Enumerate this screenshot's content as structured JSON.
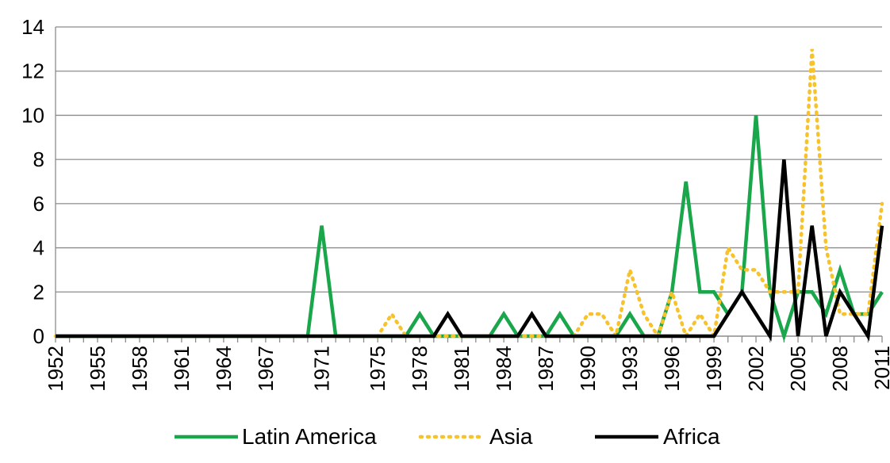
{
  "chart_data": {
    "type": "line",
    "title": "",
    "xlabel": "",
    "ylabel": "",
    "ylim": [
      0,
      14
    ],
    "yticks": [
      0,
      2,
      4,
      6,
      8,
      10,
      12,
      14
    ],
    "x": [
      1952,
      1953,
      1954,
      1955,
      1956,
      1957,
      1958,
      1959,
      1960,
      1961,
      1962,
      1963,
      1964,
      1965,
      1966,
      1967,
      1968,
      1969,
      1970,
      1971,
      1972,
      1973,
      1974,
      1975,
      1976,
      1977,
      1978,
      1979,
      1980,
      1981,
      1982,
      1983,
      1984,
      1985,
      1986,
      1987,
      1988,
      1989,
      1990,
      1991,
      1992,
      1993,
      1994,
      1995,
      1996,
      1997,
      1998,
      1999,
      2000,
      2001,
      2002,
      2003,
      2004,
      2005,
      2006,
      2007,
      2008,
      2009,
      2010,
      2011
    ],
    "x_tick_labels": [
      "1952",
      "1955",
      "1958",
      "1961",
      "1964",
      "1967",
      "1971",
      "1975",
      "1978",
      "1981",
      "1984",
      "1987",
      "1990",
      "1993",
      "1996",
      "1999",
      "2002",
      "2005",
      "2008",
      "2011"
    ],
    "grid": "horizontal",
    "legend_position": "bottom",
    "series": [
      {
        "name": "Latin America",
        "color": "#1aa64b",
        "style": "solid",
        "values": [
          0,
          0,
          0,
          0,
          0,
          0,
          0,
          0,
          0,
          0,
          0,
          0,
          0,
          0,
          0,
          0,
          0,
          0,
          0,
          5,
          0,
          0,
          0,
          0,
          0,
          0,
          1,
          0,
          0,
          0,
          0,
          0,
          1,
          0,
          0,
          0,
          1,
          0,
          0,
          0,
          0,
          1,
          0,
          0,
          2,
          7,
          2,
          2,
          1,
          2,
          10,
          2,
          0,
          2,
          2,
          1,
          3,
          1,
          1,
          2
        ]
      },
      {
        "name": "Asia",
        "color": "#f7c22a",
        "style": "dotted",
        "values": [
          0,
          0,
          0,
          0,
          0,
          0,
          0,
          0,
          0,
          0,
          0,
          0,
          0,
          0,
          0,
          0,
          0,
          0,
          0,
          0,
          0,
          0,
          0,
          0,
          1,
          0,
          0,
          0,
          0,
          0,
          0,
          0,
          0,
          0,
          0,
          0,
          0,
          0,
          1,
          1,
          0,
          3,
          1,
          0,
          2,
          0,
          1,
          0,
          4,
          3,
          3,
          2,
          2,
          2,
          13,
          4,
          1,
          1,
          1,
          6
        ]
      },
      {
        "name": "Africa",
        "color": "#000000",
        "style": "solid",
        "values": [
          0,
          0,
          0,
          0,
          0,
          0,
          0,
          0,
          0,
          0,
          0,
          0,
          0,
          0,
          0,
          0,
          0,
          0,
          0,
          0,
          0,
          0,
          0,
          0,
          0,
          0,
          0,
          0,
          1,
          0,
          0,
          0,
          0,
          0,
          1,
          0,
          0,
          0,
          0,
          0,
          0,
          0,
          0,
          0,
          0,
          0,
          0,
          0,
          1,
          2,
          1,
          0,
          8,
          0,
          5,
          0,
          2,
          1,
          0,
          5
        ]
      }
    ]
  }
}
